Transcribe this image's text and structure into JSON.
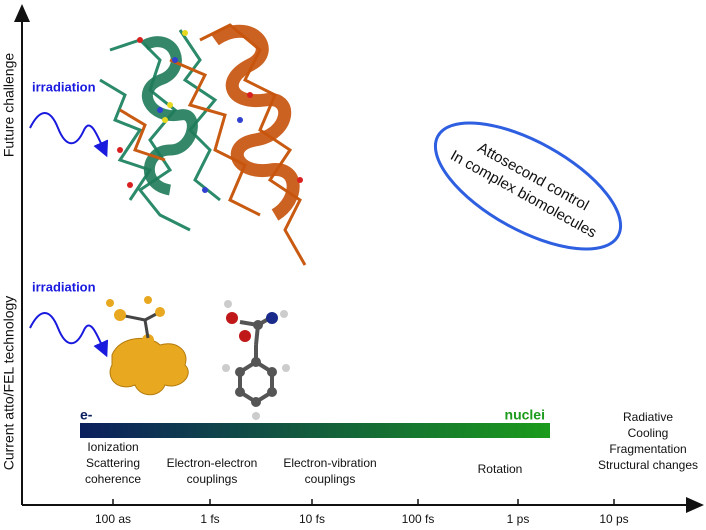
{
  "axes": {
    "y_labels": [
      "Future challenge",
      "Current atto/FEL technology"
    ],
    "x_ticks": [
      "100 as",
      "1 fs",
      "10 fs",
      "100 fs",
      "1 ps",
      "10 ps"
    ]
  },
  "irradiation_labels": [
    "irradiation",
    "irradiation"
  ],
  "bar": {
    "start_label": "e-",
    "end_label": "nuclei"
  },
  "processes": [
    {
      "lines": [
        "Ionization",
        "Scattering",
        "coherence"
      ]
    },
    {
      "lines": [
        "Electron-electron",
        "couplings"
      ]
    },
    {
      "lines": [
        "Electron-vibration",
        "couplings"
      ]
    },
    {
      "lines": [
        "Rotation"
      ]
    },
    {
      "lines": [
        "Radiative",
        "Cooling",
        "Fragmentation",
        "Structural changes"
      ]
    }
  ],
  "annotation": {
    "lines": [
      "Attosecond control",
      "In complex biomolecules"
    ]
  }
}
